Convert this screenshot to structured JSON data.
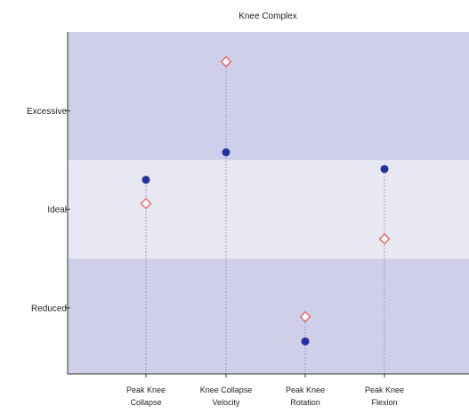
{
  "chart_data": {
    "type": "scatter",
    "title": "Knee Complex",
    "xlabel": "",
    "ylabel": "",
    "categories": [
      [
        "Peak Knee",
        "Collapse"
      ],
      [
        "Knee Collapse",
        "Velocity"
      ],
      [
        "Peak Knee",
        "Rotation"
      ],
      [
        "Peak Knee",
        "Flexion"
      ]
    ],
    "y_ticks": [
      {
        "label": "Excessive",
        "value": 2
      },
      {
        "label": "Ideal",
        "value": 1
      },
      {
        "label": "Reduced",
        "value": 0
      }
    ],
    "ylim": [
      -0.67,
      2.8
    ],
    "bands": [
      {
        "label": "Reduced",
        "from": -0.67,
        "to": 0.5,
        "color": "#cfcfea"
      },
      {
        "label": "Ideal",
        "from": 0.5,
        "to": 1.5,
        "color": "#e8e8f3"
      },
      {
        "label": "Excessive",
        "from": 1.5,
        "to": 2.8,
        "color": "#cfcfea"
      }
    ],
    "series": [
      {
        "marker": "filled-circle",
        "color": "#2233a0",
        "values": [
          1.3,
          1.58,
          -0.34,
          1.41
        ]
      },
      {
        "marker": "open-diamond",
        "color": "#e0605a",
        "values": [
          1.06,
          2.5,
          -0.09,
          0.7
        ]
      }
    ],
    "grid": false,
    "guide_line_color": "#8e8ec8"
  }
}
